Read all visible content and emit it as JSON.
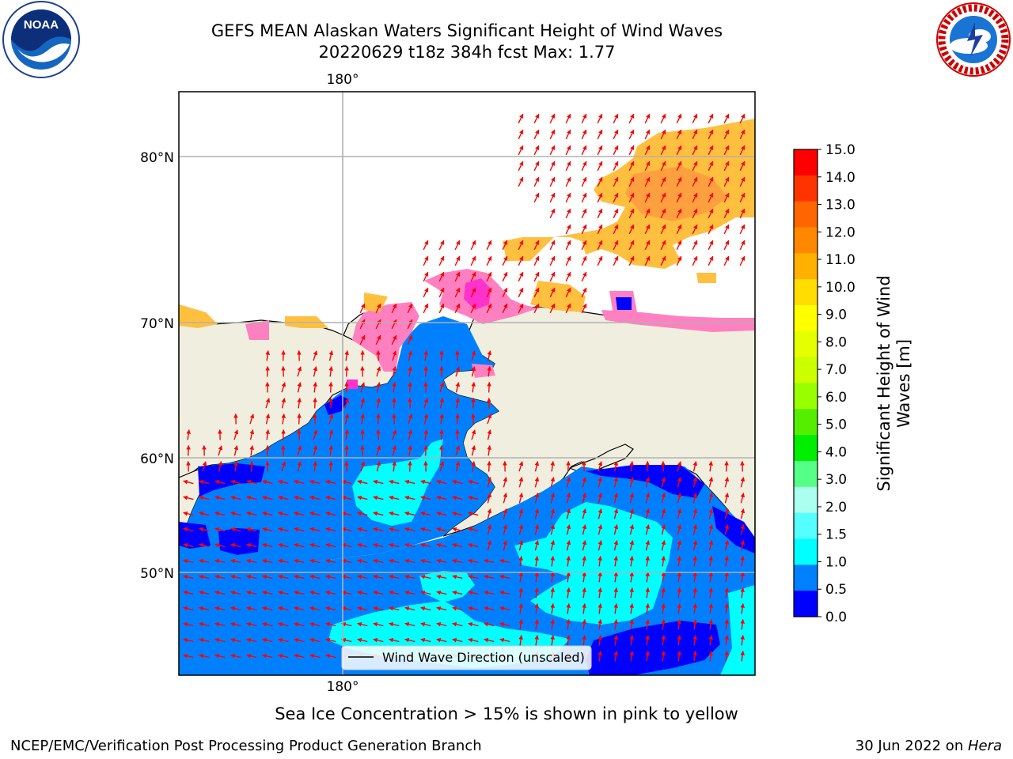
{
  "title": {
    "line1": "GEFS MEAN Alaskan Waters Significant Height of Wind Waves",
    "line2": "20220629 t18z 384h fcst   Max: 1.77"
  },
  "logos": {
    "left": {
      "icon": "noaa-logo-icon",
      "text": "NOAA",
      "ring_text": "NATIONAL OCEANIC AND ATMOSPHERIC ADMINISTRATION  U.S. DEPARTMENT OF COMMERCE"
    },
    "right": {
      "icon": "nws-logo-icon",
      "ring_text": "NATIONAL WEATHER SERVICE"
    }
  },
  "map": {
    "lon_labels": [
      "180°",
      "180°"
    ],
    "lat_labels": [
      "80°N",
      "70°N",
      "60°N",
      "50°N"
    ],
    "legend_label": "Wind Wave Direction (unscaled)",
    "colors": {
      "land": "#f0efdf",
      "deep_blue": "#0000ff",
      "blue": "#0080ff",
      "cyan": "#00ffff",
      "light_cyan": "#4dffff",
      "ice_pink": "#ff80c0",
      "ice_magenta": "#ff33cc",
      "ice_yellow": "#ffc040",
      "arrow": "#ff0000",
      "grid": "#b0b0b0"
    }
  },
  "colorbar": {
    "title_line1": "Significant Height of Wind",
    "title_line2": "Waves [m]",
    "ticks": [
      "15.0",
      "14.0",
      "13.0",
      "12.0",
      "11.0",
      "10.0",
      "9.0",
      "8.0",
      "7.0",
      "6.0",
      "5.0",
      "4.0",
      "3.0",
      "2.0",
      "1.5",
      "1.0",
      "0.5",
      "0.0"
    ],
    "colors": [
      "#ff0000",
      "#ff3300",
      "#ff6600",
      "#ff8800",
      "#ffb000",
      "#ffdd00",
      "#ffff00",
      "#e6ff00",
      "#ccff00",
      "#99ff00",
      "#55ee00",
      "#00ee00",
      "#55ff88",
      "#aaffee",
      "#55ffff",
      "#00ffff",
      "#0080ff",
      "#0000ff"
    ]
  },
  "caption": "Sea Ice Concentration > 15% is shown in pink to yellow",
  "footer": {
    "left": "NCEP/EMC/Verification Post Processing Product Generation Branch",
    "right_prefix": "30 Jun 2022 on ",
    "right_host": "Hera"
  }
}
